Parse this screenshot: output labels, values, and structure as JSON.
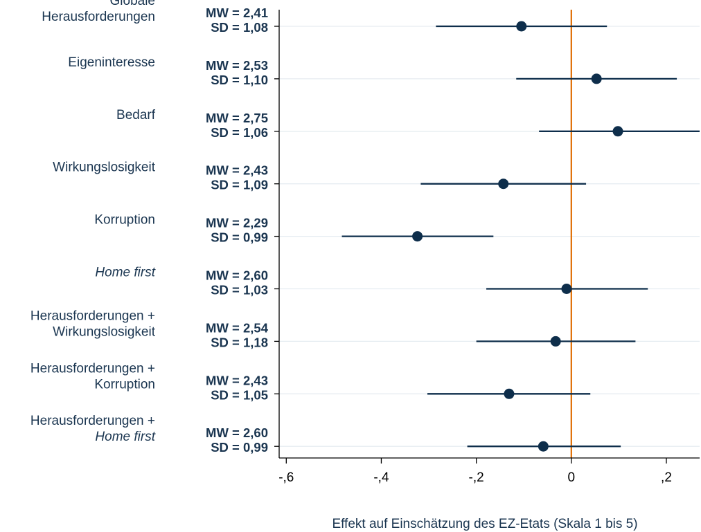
{
  "chart_data": {
    "type": "coefficient-plot",
    "xlabel": "Effekt auf Einschätzung des EZ-Etats (Skala 1 bis 5)",
    "xlim": [
      -0.615,
      0.27
    ],
    "x_ticks": [
      {
        "value": -0.6,
        "label": "-,6"
      },
      {
        "value": -0.4,
        "label": "-,4"
      },
      {
        "value": -0.2,
        "label": "-,2"
      },
      {
        "value": 0,
        "label": "0"
      },
      {
        "value": 0.2,
        "label": ",2"
      }
    ],
    "reference_line": {
      "x": 0,
      "color": "#e06c00"
    },
    "grid": "horizontal",
    "marker_color": "#0e2e4b",
    "items": [
      {
        "label_lines": [
          {
            "text": "Globale",
            "italic": false
          },
          {
            "text": "Herausforderungen",
            "italic": false
          }
        ],
        "mw": "MW = 2,41",
        "sd": "SD = 1,08",
        "estimate": -0.105,
        "ci": [
          -0.285,
          0.075
        ]
      },
      {
        "label_lines": [
          {
            "text": "Eigeninteresse",
            "italic": false
          }
        ],
        "mw": "MW = 2,53",
        "sd": "SD = 1,10",
        "estimate": 0.053,
        "ci": [
          -0.116,
          0.222
        ]
      },
      {
        "label_lines": [
          {
            "text": "Bedarf",
            "italic": false
          }
        ],
        "mw": "MW = 2,75",
        "sd": "SD = 1,06",
        "estimate": 0.098,
        "ci": [
          -0.068,
          0.27
        ]
      },
      {
        "label_lines": [
          {
            "text": "Wirkungslosigkeit",
            "italic": false
          }
        ],
        "mw": "MW = 2,43",
        "sd": "SD = 1,09",
        "estimate": -0.143,
        "ci": [
          -0.317,
          0.031
        ]
      },
      {
        "label_lines": [
          {
            "text": "Korruption",
            "italic": false
          }
        ],
        "mw": "MW = 2,29",
        "sd": "SD = 0,99",
        "estimate": -0.324,
        "ci": [
          -0.483,
          -0.164
        ]
      },
      {
        "label_lines": [
          {
            "text": "Home first",
            "italic": true
          }
        ],
        "mw": "MW = 2,60",
        "sd": "SD = 1,03",
        "estimate": -0.01,
        "ci": [
          -0.179,
          0.161
        ]
      },
      {
        "label_lines": [
          {
            "text": "Herausforderungen +",
            "italic": false
          },
          {
            "text": "Wirkungslosigkeit",
            "italic": false
          }
        ],
        "mw": "MW = 2,54",
        "sd": "SD = 1,18",
        "estimate": -0.033,
        "ci": [
          -0.2,
          0.135
        ]
      },
      {
        "label_lines": [
          {
            "text": "Herausforderungen +",
            "italic": false
          },
          {
            "text": "Korruption",
            "italic": false
          }
        ],
        "mw": "MW = 2,43",
        "sd": "SD = 1,05",
        "estimate": -0.131,
        "ci": [
          -0.303,
          0.04
        ]
      },
      {
        "label_lines": [
          {
            "text": "Herausforderungen +",
            "italic": false
          },
          {
            "text": "Home first",
            "italic": true
          }
        ],
        "mw": "MW = 2,60",
        "sd": "SD = 0,99",
        "estimate": -0.059,
        "ci": [
          -0.219,
          0.104
        ]
      }
    ]
  }
}
